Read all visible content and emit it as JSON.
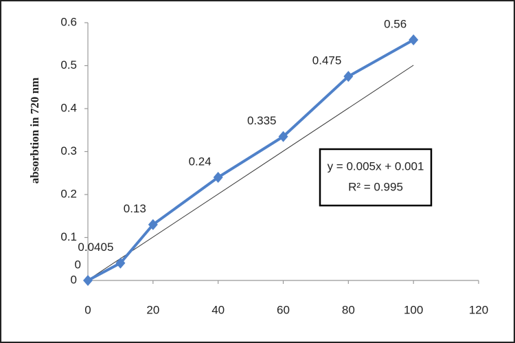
{
  "chart_data": {
    "type": "line",
    "ylabel": "absorbtion in 720 nm",
    "x": [
      0,
      10,
      20,
      40,
      60,
      80,
      100
    ],
    "series": [
      {
        "color": "#4f81c9",
        "values": [
          0,
          0.0405,
          0.13,
          0.24,
          0.335,
          0.475,
          0.56
        ]
      }
    ],
    "xlim": [
      0,
      120
    ],
    "xticks": [
      0,
      20,
      40,
      60,
      80,
      100,
      120
    ],
    "ylim": [
      0,
      0.6
    ],
    "yticks": [
      0,
      0.1,
      0.2,
      0.3,
      0.4,
      0.5,
      0.6
    ],
    "grid": false,
    "trendline": {
      "slope": 0.005,
      "intercept": 0.001,
      "equation": "y = 0.005x + 0.001",
      "r2": "R² = 0.995"
    }
  }
}
